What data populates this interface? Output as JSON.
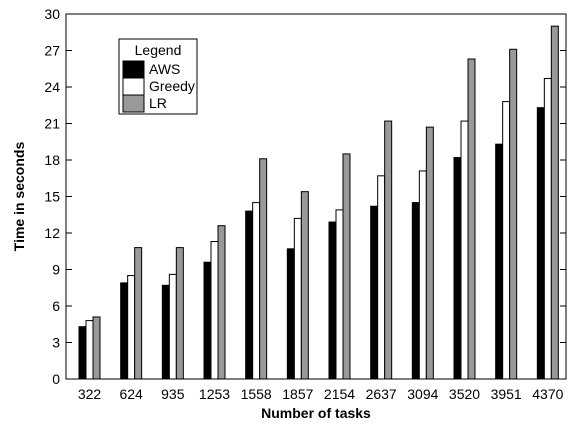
{
  "chart_data": {
    "type": "bar",
    "xlabel": "Number of tasks",
    "ylabel": "Time in seconds",
    "ylim": [
      0,
      30
    ],
    "yticks": [
      0,
      3,
      6,
      9,
      12,
      15,
      18,
      21,
      24,
      27,
      30
    ],
    "categories": [
      "322",
      "624",
      "935",
      "1253",
      "1558",
      "1857",
      "2154",
      "2637",
      "3094",
      "3520",
      "3951",
      "4370"
    ],
    "legend": {
      "title": "Legend",
      "position": "top-left"
    },
    "grid": false,
    "series": [
      {
        "name": "AWS",
        "color": "#000000",
        "values": [
          4.3,
          7.9,
          7.7,
          9.6,
          13.8,
          10.7,
          12.9,
          14.2,
          14.5,
          18.2,
          19.3,
          22.3
        ]
      },
      {
        "name": "Greedy",
        "color": "#ffffff",
        "values": [
          4.8,
          8.5,
          8.6,
          11.3,
          14.5,
          13.2,
          13.9,
          16.7,
          17.1,
          21.2,
          22.8,
          24.7
        ]
      },
      {
        "name": "LR",
        "color": "#999999",
        "values": [
          5.1,
          10.8,
          10.8,
          12.6,
          18.1,
          15.4,
          18.5,
          21.2,
          20.7,
          26.3,
          27.1,
          29.0
        ]
      }
    ]
  }
}
